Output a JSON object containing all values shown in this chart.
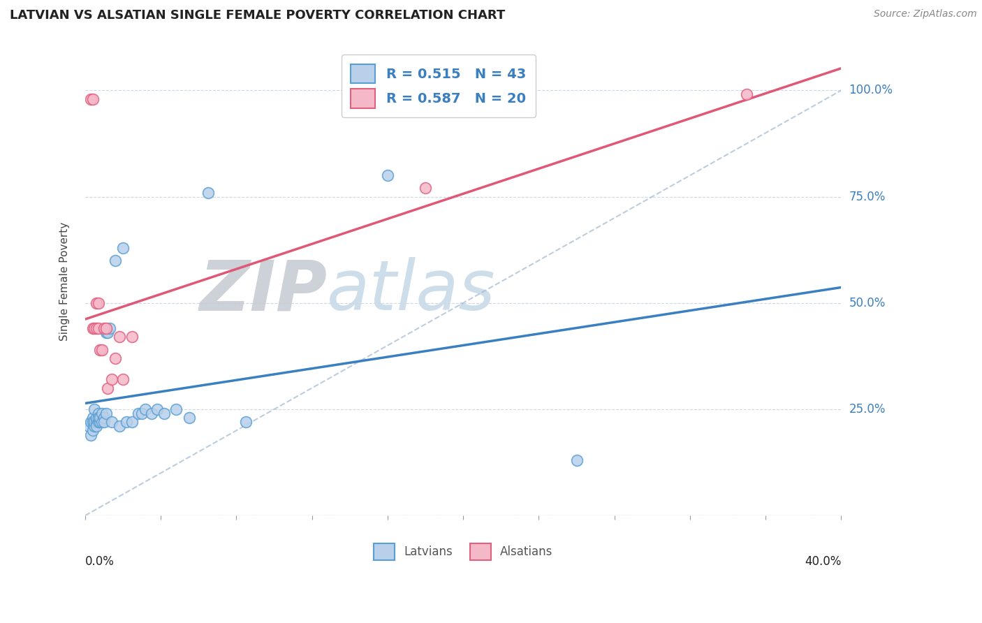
{
  "title": "LATVIAN VS ALSATIAN SINGLE FEMALE POVERTY CORRELATION CHART",
  "source_text": "Source: ZipAtlas.com",
  "ylabel": "Single Female Poverty",
  "yticks": [
    0.0,
    0.25,
    0.5,
    0.75,
    1.0
  ],
  "ytick_labels": [
    "",
    "25.0%",
    "50.0%",
    "75.0%",
    "100.0%"
  ],
  "xlim": [
    0.0,
    0.4
  ],
  "ylim": [
    0.0,
    1.1
  ],
  "latvian_R": 0.515,
  "latvian_N": 43,
  "alsatian_R": 0.587,
  "alsatian_N": 20,
  "blue_scatter_fill": "#b8d0ea",
  "blue_scatter_edge": "#5a9fd4",
  "pink_scatter_fill": "#f5b8c8",
  "pink_scatter_edge": "#e06080",
  "blue_line_color": "#3a7fc0",
  "pink_line_color": "#e05878",
  "legend_text_color": "#3a7fc0",
  "watermark_zip_color": "#c8ddf0",
  "watermark_atlas_color": "#d0e8d0",
  "grid_color": "#c8d4e4",
  "background_color": "#ffffff",
  "latvian_x": [
    0.002,
    0.003,
    0.003,
    0.004,
    0.004,
    0.004,
    0.005,
    0.005,
    0.005,
    0.006,
    0.006,
    0.006,
    0.007,
    0.007,
    0.007,
    0.008,
    0.008,
    0.009,
    0.009,
    0.01,
    0.01,
    0.011,
    0.011,
    0.012,
    0.013,
    0.014,
    0.016,
    0.018,
    0.02,
    0.022,
    0.025,
    0.028,
    0.03,
    0.032,
    0.035,
    0.038,
    0.042,
    0.048,
    0.055,
    0.065,
    0.085,
    0.16,
    0.26
  ],
  "latvian_y": [
    0.21,
    0.19,
    0.22,
    0.2,
    0.23,
    0.22,
    0.21,
    0.22,
    0.25,
    0.22,
    0.23,
    0.21,
    0.22,
    0.24,
    0.23,
    0.22,
    0.23,
    0.24,
    0.22,
    0.23,
    0.22,
    0.24,
    0.43,
    0.43,
    0.44,
    0.22,
    0.6,
    0.21,
    0.63,
    0.22,
    0.22,
    0.24,
    0.24,
    0.25,
    0.24,
    0.25,
    0.24,
    0.25,
    0.23,
    0.76,
    0.22,
    0.8,
    0.13
  ],
  "alsatian_x": [
    0.003,
    0.004,
    0.004,
    0.005,
    0.006,
    0.006,
    0.007,
    0.007,
    0.008,
    0.009,
    0.01,
    0.011,
    0.012,
    0.014,
    0.016,
    0.018,
    0.02,
    0.025,
    0.18,
    0.35
  ],
  "alsatian_y": [
    0.98,
    0.98,
    0.44,
    0.44,
    0.44,
    0.5,
    0.44,
    0.5,
    0.39,
    0.39,
    0.44,
    0.44,
    0.3,
    0.32,
    0.37,
    0.42,
    0.32,
    0.42,
    0.77,
    0.99
  ],
  "figsize": [
    14.06,
    8.92
  ],
  "dpi": 100
}
